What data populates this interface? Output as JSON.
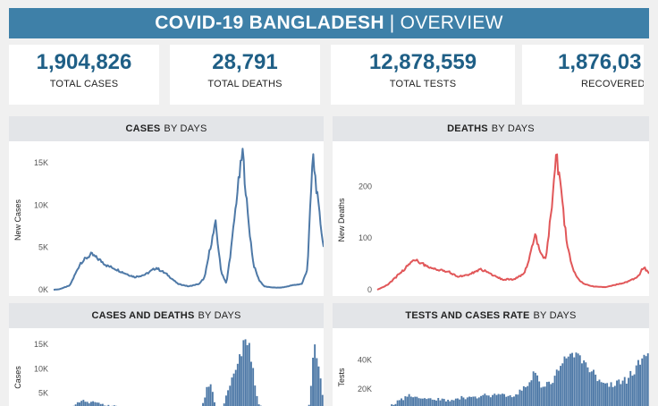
{
  "header": {
    "title_bold": "COVID-19 BANGLADESH",
    "separator": "|",
    "title_light": "OVERVIEW"
  },
  "kpis": [
    {
      "value": "1,904,826",
      "label": "TOTAL CASES"
    },
    {
      "value": "28,791",
      "label": "TOTAL DEATHS"
    },
    {
      "value": "12,878,559",
      "label": "TOTAL TESTS"
    },
    {
      "value": "1,876,03",
      "label": "RECOVERED"
    }
  ],
  "colors": {
    "header": "#3e80a8",
    "cases": "#4e79a7",
    "deaths": "#e15759",
    "kpi_value": "#1f5f86"
  },
  "panels": {
    "cases": {
      "title_bold": "CASES",
      "title_rest": "BY DAYS"
    },
    "deaths": {
      "title_bold": "DEATHS",
      "title_rest": "BY DAYS"
    },
    "cases_deaths": {
      "title_bold": "CASES AND DEATHS",
      "title_rest": "BY DAYS"
    },
    "tests": {
      "title_bold": "TESTS AND CASES RATE",
      "title_rest": "BY DAYS"
    }
  },
  "chart_data": [
    {
      "id": "cases",
      "type": "line",
      "ylabel": "New Cases",
      "yticks": [
        0,
        5000,
        10000,
        15000
      ],
      "ytick_labels": [
        "0K",
        "5K",
        "10K",
        "15K"
      ],
      "ylim": [
        0,
        16500
      ],
      "color": "#4e79a7",
      "x": [
        0,
        0.02,
        0.06,
        0.1,
        0.14,
        0.18,
        0.2,
        0.22,
        0.26,
        0.3,
        0.34,
        0.38,
        0.42,
        0.46,
        0.5,
        0.54,
        0.56,
        0.58,
        0.6,
        0.62,
        0.64,
        0.66,
        0.68,
        0.7,
        0.72,
        0.74,
        0.76,
        0.78,
        0.8,
        0.82,
        0.84,
        0.86,
        0.88,
        0.9,
        0.92,
        0.94,
        0.96,
        0.98,
        1.0
      ],
      "values": [
        0,
        50,
        500,
        3200,
        4200,
        3300,
        2800,
        2600,
        2000,
        1500,
        1800,
        2600,
        1800,
        700,
        400,
        700,
        1500,
        5000,
        7800,
        2200,
        700,
        5500,
        11500,
        16300,
        8500,
        3000,
        1200,
        400,
        300,
        250,
        250,
        350,
        500,
        600,
        700,
        2500,
        16000,
        10000,
        5000
      ]
    },
    {
      "id": "deaths",
      "type": "line",
      "ylabel": "New Deaths",
      "yticks": [
        0,
        100,
        200
      ],
      "ytick_labels": [
        "0",
        "100",
        "200"
      ],
      "ylim": [
        0,
        270
      ],
      "color": "#e15759",
      "x": [
        0,
        0.04,
        0.08,
        0.12,
        0.14,
        0.18,
        0.22,
        0.26,
        0.3,
        0.34,
        0.38,
        0.42,
        0.46,
        0.5,
        0.54,
        0.56,
        0.58,
        0.6,
        0.62,
        0.64,
        0.66,
        0.68,
        0.7,
        0.72,
        0.74,
        0.76,
        0.78,
        0.8,
        0.84,
        0.88,
        0.92,
        0.96,
        0.98,
        1.0
      ],
      "values": [
        0,
        10,
        30,
        50,
        60,
        45,
        40,
        35,
        25,
        30,
        40,
        30,
        20,
        20,
        30,
        60,
        110,
        70,
        60,
        150,
        260,
        170,
        80,
        40,
        20,
        12,
        8,
        6,
        5,
        10,
        15,
        25,
        45,
        30
      ]
    },
    {
      "id": "cases_deaths",
      "type": "bar",
      "ylabel": "Cases",
      "yticks": [
        5000,
        10000,
        15000
      ],
      "ytick_labels": [
        "5K",
        "10K",
        "15K"
      ],
      "ylim": [
        0,
        16500
      ],
      "color": "#4e79a7",
      "x": [
        0,
        0.1,
        0.2,
        0.3,
        0.4,
        0.5,
        0.54,
        0.58,
        0.6,
        0.62,
        0.68,
        0.72,
        0.76,
        0.8,
        0.84,
        0.88,
        0.92,
        0.95,
        0.97,
        1.0
      ],
      "values": [
        0,
        3400,
        2600,
        1500,
        2200,
        400,
        700,
        7800,
        2200,
        700,
        11500,
        16300,
        3000,
        400,
        250,
        350,
        600,
        2500,
        16000,
        5000
      ]
    },
    {
      "id": "tests",
      "type": "bar",
      "ylabel": "Tests",
      "yticks": [
        20000,
        40000
      ],
      "ytick_labels": [
        "20K",
        "40K"
      ],
      "ylim": [
        0,
        56000
      ],
      "color": "#4e79a7",
      "x": [
        0,
        0.04,
        0.08,
        0.12,
        0.16,
        0.2,
        0.26,
        0.32,
        0.38,
        0.44,
        0.5,
        0.54,
        0.58,
        0.6,
        0.64,
        0.68,
        0.72,
        0.76,
        0.8,
        0.84,
        0.88,
        0.92,
        0.96,
        1.0
      ],
      "values": [
        1000,
        8000,
        12000,
        16000,
        14000,
        13500,
        12000,
        14000,
        15000,
        16000,
        15000,
        20000,
        32000,
        22000,
        24000,
        38000,
        47000,
        40000,
        30000,
        22000,
        24000,
        26000,
        36000,
        42000
      ]
    }
  ]
}
